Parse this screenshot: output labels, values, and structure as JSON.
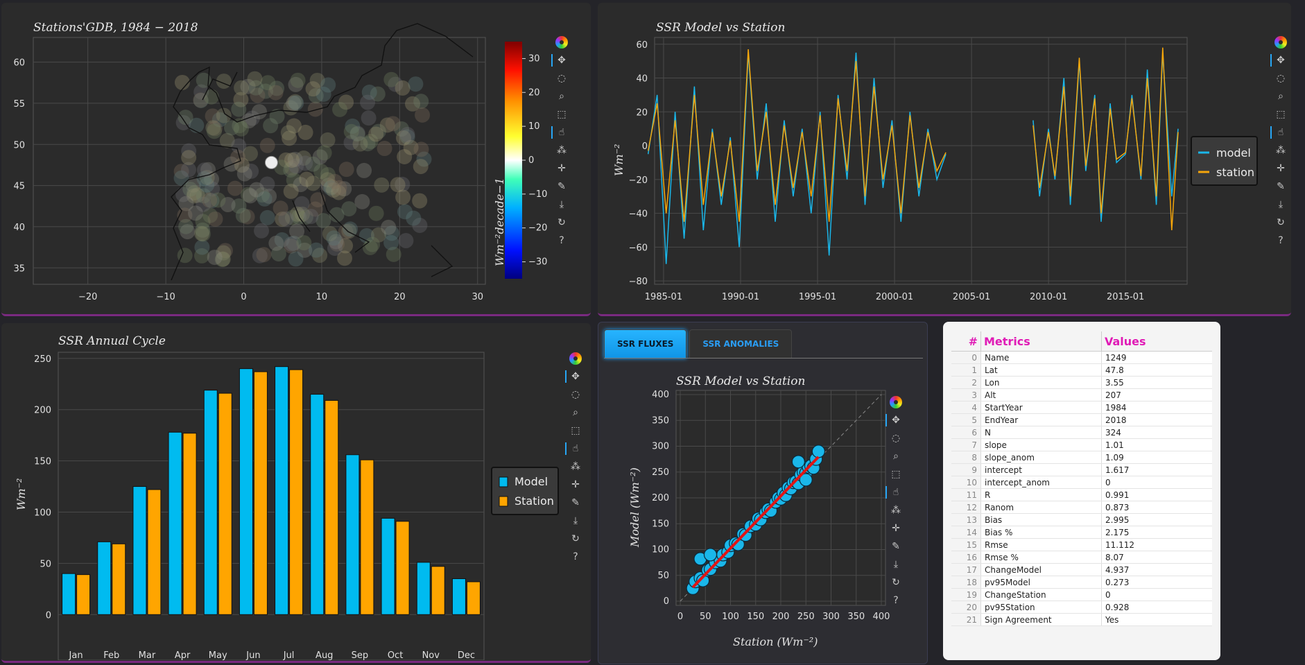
{
  "map_panel": {
    "title": "Stations'GDB, 1984 − 2018",
    "lon_ticks": [
      "−20",
      "−10",
      "0",
      "10",
      "20",
      "30"
    ],
    "lat_ticks": [
      "60",
      "55",
      "50",
      "45",
      "40",
      "35"
    ],
    "colorbar": {
      "ticks": [
        "30",
        "20",
        "10",
        "0",
        "−10",
        "−20",
        "−30"
      ],
      "label": "Wm⁻²decade−1"
    },
    "selected_station": {
      "lon": 3.55,
      "lat": 47.8
    }
  },
  "toolbar_icons": [
    "bokeh-logo-icon",
    "pan-icon",
    "lasso-icon",
    "box-zoom-icon",
    "box-select-icon",
    "tap-icon",
    "hover-icon",
    "crosshair-icon",
    "edit-icon",
    "save-icon",
    "reset-icon",
    "help-icon"
  ],
  "timeseries": {
    "title": "SSR Model vs Station",
    "ylabel": "Wm⁻²",
    "y_ticks": [
      "60",
      "40",
      "20",
      "0",
      "−20",
      "−40",
      "−60",
      "−80"
    ],
    "x_ticks": [
      "1985-01",
      "1990-01",
      "1995-01",
      "2000-01",
      "2005-01",
      "2010-01",
      "2015-01"
    ],
    "legend": [
      "model",
      "station"
    ],
    "colors": {
      "model": "#1ab7ea",
      "station": "#f5a60a"
    }
  },
  "annual_cycle": {
    "title": "SSR Annual Cycle",
    "ylabel": "Wm⁻²",
    "y_ticks": [
      "250",
      "200",
      "150",
      "100",
      "50",
      "0"
    ],
    "legend": [
      "Model",
      "Station"
    ]
  },
  "tabs": [
    "SSR FLUXES",
    "SSR ANOMALIES"
  ],
  "scatter": {
    "title": "SSR Model vs Station",
    "xlabel": "Station (Wm⁻²)",
    "ylabel": "Model (Wm⁻²)",
    "x_ticks": [
      "0",
      "50",
      "100",
      "150",
      "200",
      "250",
      "300",
      "350",
      "400"
    ],
    "y_ticks": [
      "400",
      "350",
      "300",
      "250",
      "200",
      "150",
      "100",
      "50",
      "0"
    ]
  },
  "metrics_table": {
    "headers": [
      "#",
      "Metrics",
      "Values"
    ],
    "rows": [
      [
        "0",
        "Name",
        "1249"
      ],
      [
        "1",
        "Lat",
        "47.8"
      ],
      [
        "2",
        "Lon",
        "3.55"
      ],
      [
        "3",
        "Alt",
        "207"
      ],
      [
        "4",
        "StartYear",
        "1984"
      ],
      [
        "5",
        "EndYear",
        "2018"
      ],
      [
        "6",
        "N",
        "324"
      ],
      [
        "7",
        "slope",
        "1.01"
      ],
      [
        "8",
        "slope_anom",
        "1.09"
      ],
      [
        "9",
        "intercept",
        "1.617"
      ],
      [
        "10",
        "intercept_anom",
        "0"
      ],
      [
        "11",
        "R",
        "0.991"
      ],
      [
        "12",
        "Ranom",
        "0.873"
      ],
      [
        "13",
        "Bias",
        "2.995"
      ],
      [
        "14",
        "Bias %",
        "2.175"
      ],
      [
        "15",
        "Rmse",
        "11.112"
      ],
      [
        "16",
        "Rmse %",
        "8.07"
      ],
      [
        "17",
        "ChangeModel",
        "4.937"
      ],
      [
        "18",
        "pv95Model",
        "0.273"
      ],
      [
        "19",
        "ChangeStation",
        "0"
      ],
      [
        "20",
        "pv95Station",
        "0.928"
      ],
      [
        "21",
        "Sign Agreement",
        "Yes"
      ]
    ]
  },
  "chart_data": [
    {
      "type": "scatter",
      "title": "Stations'GDB, 1984 − 2018",
      "xlim": [
        -27,
        31
      ],
      "ylim": [
        33,
        63
      ],
      "colorbar_range": [
        -35,
        35
      ],
      "colorbar_label": "Wm⁻²decade−1",
      "highlighted_point": [
        3.55,
        47.8
      ]
    },
    {
      "type": "line",
      "title": "SSR Model vs Station",
      "ylabel": "Wm⁻²",
      "ylim": [
        -82,
        64
      ],
      "xlim": [
        "1984-06",
        "2019-01"
      ],
      "series": [
        {
          "name": "model",
          "x": [
            "1984-01",
            "1984-08",
            "1985-03",
            "1985-10",
            "1986-05",
            "1987-01",
            "1987-08",
            "1988-03",
            "1988-10",
            "1989-05",
            "1989-12",
            "1990-07",
            "1991-02",
            "1991-09",
            "1992-04",
            "1992-11",
            "1993-06",
            "1994-01",
            "1994-08",
            "1995-03",
            "1995-10",
            "1996-05",
            "1996-12",
            "1997-07",
            "1998-02",
            "1998-09",
            "1999-04",
            "1999-11",
            "2000-06",
            "2001-01",
            "2001-08",
            "2002-03",
            "2002-10",
            "2003-05",
            "2009-01",
            "2009-06",
            "2010-01",
            "2010-06",
            "2011-01",
            "2011-06",
            "2012-01",
            "2012-06",
            "2013-01",
            "2013-06",
            "2014-01",
            "2014-06",
            "2015-01",
            "2015-06",
            "2016-01",
            "2016-06",
            "2017-01",
            "2017-06",
            "2018-01",
            "2018-06"
          ],
          "values": [
            -5,
            30,
            -70,
            20,
            -55,
            35,
            -50,
            10,
            -35,
            5,
            -60,
            55,
            -20,
            25,
            -45,
            15,
            -30,
            10,
            -40,
            20,
            -65,
            30,
            -20,
            55,
            -35,
            40,
            -25,
            15,
            -45,
            20,
            -30,
            10,
            -20,
            -5,
            15,
            -30,
            10,
            -20,
            40,
            -35,
            50,
            -15,
            30,
            -45,
            25,
            -10,
            -5,
            30,
            -20,
            45,
            -35,
            55,
            -30,
            10
          ]
        },
        {
          "name": "station",
          "x": [
            "1984-01",
            "1984-08",
            "1985-03",
            "1985-10",
            "1986-05",
            "1987-01",
            "1987-08",
            "1988-03",
            "1988-10",
            "1989-05",
            "1989-12",
            "1990-07",
            "1991-02",
            "1991-09",
            "1992-04",
            "1992-11",
            "1993-06",
            "1994-01",
            "1994-08",
            "1995-03",
            "1995-10",
            "1996-05",
            "1996-12",
            "1997-07",
            "1998-02",
            "1998-09",
            "1999-04",
            "1999-11",
            "2000-06",
            "2001-01",
            "2001-08",
            "2002-03",
            "2002-10",
            "2003-05",
            "2009-01",
            "2009-06",
            "2010-01",
            "2010-06",
            "2011-01",
            "2011-06",
            "2012-01",
            "2012-06",
            "2013-01",
            "2013-06",
            "2014-01",
            "2014-06",
            "2015-01",
            "2015-06",
            "2016-01",
            "2016-06",
            "2017-01",
            "2017-06",
            "2018-01",
            "2018-06"
          ],
          "values": [
            -3,
            25,
            -40,
            15,
            -45,
            30,
            -35,
            8,
            -30,
            3,
            -45,
            57,
            -15,
            20,
            -35,
            12,
            -25,
            8,
            -30,
            18,
            -45,
            28,
            -15,
            50,
            -30,
            35,
            -20,
            12,
            -40,
            18,
            -25,
            8,
            -15,
            -4,
            12,
            -25,
            8,
            -18,
            35,
            -30,
            52,
            -12,
            28,
            -40,
            22,
            -8,
            -4,
            28,
            -18,
            40,
            -30,
            58,
            -50,
            8
          ]
        }
      ]
    },
    {
      "type": "bar",
      "title": "SSR Annual Cycle",
      "ylabel": "Wm⁻²",
      "categories": [
        "Jan",
        "Feb",
        "Mar",
        "Apr",
        "May",
        "Jun",
        "Jul",
        "Aug",
        "Sep",
        "Oct",
        "Nov",
        "Dec"
      ],
      "ylim": [
        -12,
        256
      ],
      "series": [
        {
          "name": "Model",
          "values": [
            40,
            71,
            125,
            178,
            219,
            240,
            242,
            215,
            156,
            94,
            51,
            35
          ]
        },
        {
          "name": "Station",
          "values": [
            39,
            69,
            122,
            177,
            216,
            237,
            239,
            209,
            151,
            91,
            47,
            32
          ]
        }
      ],
      "colors": {
        "Model": "#00bbf0",
        "Station": "#ffa500"
      }
    },
    {
      "type": "scatter",
      "title": "SSR Model vs Station",
      "xlabel": "Station (Wm⁻²)",
      "ylabel": "Model (Wm⁻²)",
      "xlim": [
        0,
        400
      ],
      "ylim": [
        0,
        400
      ],
      "fit_line": {
        "slope": 1.01,
        "intercept": 1.617
      },
      "points": [
        [
          25,
          25
        ],
        [
          30,
          38
        ],
        [
          40,
          45
        ],
        [
          45,
          40
        ],
        [
          55,
          60
        ],
        [
          60,
          62
        ],
        [
          70,
          75
        ],
        [
          80,
          78
        ],
        [
          85,
          90
        ],
        [
          95,
          95
        ],
        [
          100,
          108
        ],
        [
          110,
          112
        ],
        [
          115,
          110
        ],
        [
          125,
          130
        ],
        [
          130,
          128
        ],
        [
          140,
          145
        ],
        [
          150,
          148
        ],
        [
          155,
          160
        ],
        [
          160,
          158
        ],
        [
          170,
          172
        ],
        [
          175,
          178
        ],
        [
          180,
          175
        ],
        [
          190,
          192
        ],
        [
          195,
          200
        ],
        [
          200,
          198
        ],
        [
          205,
          210
        ],
        [
          210,
          205
        ],
        [
          215,
          220
        ],
        [
          220,
          218
        ],
        [
          225,
          230
        ],
        [
          230,
          232
        ],
        [
          235,
          228
        ],
        [
          240,
          245
        ],
        [
          245,
          250
        ],
        [
          250,
          248
        ],
        [
          255,
          260
        ],
        [
          260,
          262
        ],
        [
          265,
          258
        ],
        [
          270,
          275
        ],
        [
          275,
          290
        ],
        [
          40,
          82
        ],
        [
          60,
          90
        ],
        [
          250,
          235
        ],
        [
          235,
          270
        ]
      ]
    }
  ]
}
